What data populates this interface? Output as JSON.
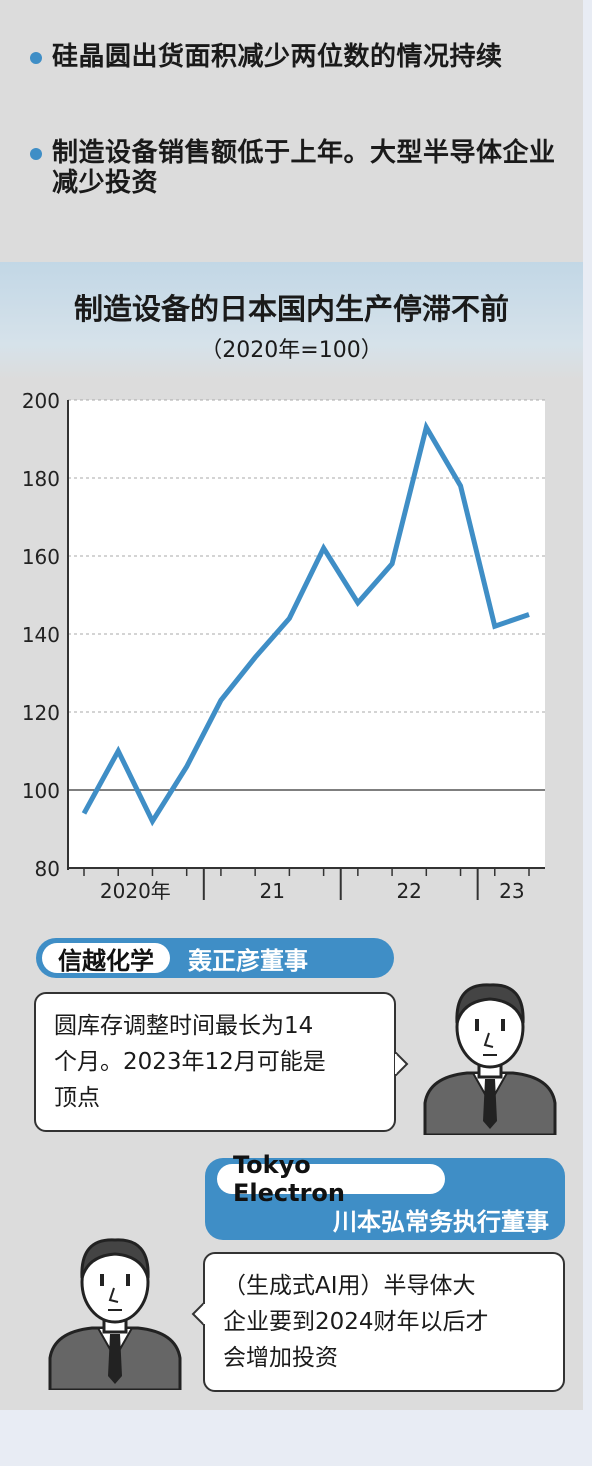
{
  "bullets": [
    "硅晶圆出货面积减少两位数的情况持续",
    "制造设备销售额低于上年。大型半导体企业减少投资"
  ],
  "chart_data": {
    "type": "line",
    "title": "制造设备的日本国内生产停滞不前",
    "subtitle": "（2020年=100）",
    "x": [
      "2020Q1",
      "2020Q2",
      "2020Q3",
      "2020Q4",
      "2021Q1",
      "2021Q2",
      "2021Q3",
      "2021Q4",
      "2022Q1",
      "2022Q2",
      "2022Q3",
      "2022Q4",
      "2023Q1",
      "2023Q2"
    ],
    "values": [
      94,
      110,
      92,
      106,
      123,
      134,
      144,
      162,
      148,
      158,
      193,
      178,
      142,
      145
    ],
    "ylim": [
      80,
      200
    ],
    "yticks": [
      "80",
      "100",
      "120",
      "140",
      "160",
      "180",
      "200"
    ],
    "xlabels": [
      "2020年",
      "21",
      "22",
      "23"
    ],
    "grid": true,
    "line_color": "#3f8ec6"
  },
  "speakers": [
    {
      "company": "信越化学",
      "person": "轰正彦董事",
      "quote_lines": [
        "圆库存调整时间最长为14",
        "个月。2023年12月可能是",
        "顶点"
      ]
    },
    {
      "company": "Tokyo Electron",
      "person": "川本弘常务执行董事",
      "quote_lines": [
        "（生成式AI用）半导体大",
        "企业要到2024财年以后才",
        "会增加投资"
      ]
    }
  ],
  "colors": {
    "accent": "#3f8ec6",
    "panel": "#dcdcdc"
  }
}
